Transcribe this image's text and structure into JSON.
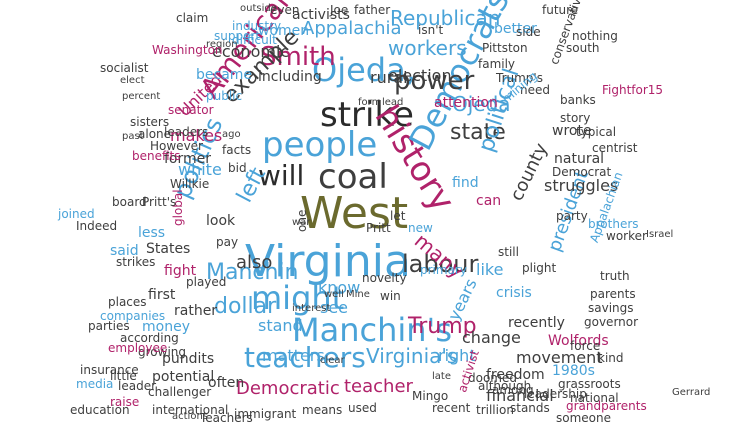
{
  "words": [
    {
      "text": "West",
      "color": "#6b6a2e"
    },
    {
      "text": "Virginia",
      "color": "#4aa3d8"
    },
    {
      "text": "coal",
      "color": "#3e3e3e"
    },
    {
      "text": "will",
      "color": "#2b2b2b"
    },
    {
      "text": "strike",
      "color": "#2b2b2b"
    },
    {
      "text": "people",
      "color": "#4aa3d8"
    },
    {
      "text": "might",
      "color": "#4aa3d8"
    },
    {
      "text": "history",
      "color": "#b0226a"
    },
    {
      "text": "Ojeda,",
      "color": "#4aa3d8"
    },
    {
      "text": "Smith",
      "color": "#b0226a"
    },
    {
      "text": "Manchin's",
      "color": "#4aa3d8"
    },
    {
      "text": "teachers",
      "color": "#4aa3d8"
    },
    {
      "text": "Democrats",
      "color": "#4aa3d8"
    },
    {
      "text": "American",
      "color": "#b0226a"
    },
    {
      "text": "politics",
      "color": "#4aa3d8"
    },
    {
      "text": "labour",
      "color": "#3e3e3e"
    },
    {
      "text": "power",
      "color": "#3e3e3e"
    },
    {
      "text": "example",
      "color": "#3e3e3e"
    },
    {
      "text": "left",
      "color": "#4aa3d8"
    },
    {
      "text": "Manchin",
      "color": "#4aa3d8"
    },
    {
      "text": "dollar",
      "color": "#4aa3d8"
    },
    {
      "text": "Trump",
      "color": "#b0226a"
    },
    {
      "text": "state",
      "color": "#3e3e3e"
    },
    {
      "text": "Ojeda",
      "color": "#4aa3d8"
    },
    {
      "text": "workers",
      "color": "#4aa3d8"
    },
    {
      "text": "political",
      "color": "#4aa3d8"
    },
    {
      "text": "many",
      "color": "#b0226a"
    },
    {
      "text": "Appalachia",
      "color": "#4aa3d8"
    },
    {
      "text": "Republican",
      "color": "#4aa3d8"
    },
    {
      "text": "election",
      "color": "#3e3e3e"
    },
    {
      "text": "economic",
      "color": "#3e3e3e"
    },
    {
      "text": "Virginia's",
      "color": "#4aa3d8"
    },
    {
      "text": "Democratic",
      "color": "#b0226a"
    },
    {
      "text": "teacher",
      "color": "#b0226a"
    },
    {
      "text": "county",
      "color": "#3e3e3e"
    },
    {
      "text": "president",
      "color": "#4aa3d8"
    },
    {
      "text": "rural",
      "color": "#3e3e3e"
    },
    {
      "text": "also",
      "color": "#3e3e3e"
    },
    {
      "text": "know",
      "color": "#4aa3d8"
    },
    {
      "text": "see",
      "color": "#4aa3d8"
    },
    {
      "text": "stand",
      "color": "#4aa3d8"
    },
    {
      "text": "matters",
      "color": "#4aa3d8"
    },
    {
      "text": "right",
      "color": "#4aa3d8"
    },
    {
      "text": "change",
      "color": "#3e3e3e"
    },
    {
      "text": "years",
      "color": "#4aa3d8"
    },
    {
      "text": "like",
      "color": "#4aa3d8"
    },
    {
      "text": "makes",
      "color": "#b0226a"
    },
    {
      "text": "United",
      "color": "#b0226a"
    },
    {
      "text": "white",
      "color": "#4aa3d8"
    },
    {
      "text": "movement",
      "color": "#3e3e3e"
    },
    {
      "text": "financial",
      "color": "#3e3e3e"
    },
    {
      "text": "freedom",
      "color": "#3e3e3e"
    },
    {
      "text": "struggles",
      "color": "#3e3e3e"
    },
    {
      "text": "find",
      "color": "#4aa3d8"
    },
    {
      "text": "natural",
      "color": "#3e3e3e"
    },
    {
      "text": "Democrat",
      "color": "#3e3e3e"
    },
    {
      "text": "can",
      "color": "#b0226a"
    },
    {
      "text": "wrote",
      "color": "#3e3e3e"
    },
    {
      "text": "crisis",
      "color": "#4aa3d8"
    },
    {
      "text": "recently",
      "color": "#3e3e3e"
    },
    {
      "text": "Wolfords",
      "color": "#b0226a"
    },
    {
      "text": "pundits",
      "color": "#3e3e3e"
    },
    {
      "text": "potential",
      "color": "#3e3e3e"
    },
    {
      "text": "often",
      "color": "#3e3e3e"
    },
    {
      "text": "money",
      "color": "#4aa3d8"
    },
    {
      "text": "rather",
      "color": "#3e3e3e"
    },
    {
      "text": "first",
      "color": "#3e3e3e"
    },
    {
      "text": "according",
      "color": "#3e3e3e"
    },
    {
      "text": "growing",
      "color": "#3e3e3e"
    },
    {
      "text": "States",
      "color": "#3e3e3e"
    },
    {
      "text": "said",
      "color": "#4aa3d8"
    },
    {
      "text": "less",
      "color": "#4aa3d8"
    },
    {
      "text": "fight",
      "color": "#b0226a"
    },
    {
      "text": "played",
      "color": "#3e3e3e"
    },
    {
      "text": "global",
      "color": "#b0226a"
    },
    {
      "text": "look",
      "color": "#3e3e3e"
    },
    {
      "text": "Willkie",
      "color": "#3e3e3e"
    },
    {
      "text": "bid",
      "color": "#3e3e3e"
    },
    {
      "text": "former",
      "color": "#3e3e3e"
    },
    {
      "text": "leaders",
      "color": "#3e3e3e"
    },
    {
      "text": "However",
      "color": "#3e3e3e"
    },
    {
      "text": "became",
      "color": "#4aa3d8"
    },
    {
      "text": "including",
      "color": "#3e3e3e"
    },
    {
      "text": "women",
      "color": "#4aa3d8"
    },
    {
      "text": "activists",
      "color": "#3e3e3e"
    },
    {
      "text": "even",
      "color": "#3e3e3e"
    },
    {
      "text": "Joe",
      "color": "#3e3e3e"
    },
    {
      "text": "outside",
      "color": "#3e3e3e"
    },
    {
      "text": "claim",
      "color": "#3e3e3e"
    },
    {
      "text": "industry",
      "color": "#4aa3d8"
    },
    {
      "text": "support",
      "color": "#4aa3d8"
    },
    {
      "text": "difficult",
      "color": "#4aa3d8"
    },
    {
      "text": "region",
      "color": "#3e3e3e"
    },
    {
      "text": "Washington",
      "color": "#b0226a"
    },
    {
      "text": "senator",
      "color": "#b0226a"
    },
    {
      "text": "public",
      "color": "#4aa3d8"
    },
    {
      "text": "Pittston",
      "color": "#3e3e3e"
    },
    {
      "text": "better",
      "color": "#4aa3d8"
    },
    {
      "text": "family",
      "color": "#3e3e3e"
    },
    {
      "text": "attention",
      "color": "#b0226a"
    },
    {
      "text": "Trump's",
      "color": "#3e3e3e"
    },
    {
      "text": "need",
      "color": "#3e3e3e"
    },
    {
      "text": "banks",
      "color": "#3e3e3e"
    },
    {
      "text": "mining",
      "color": "#4aa3d8"
    },
    {
      "text": "conservative",
      "color": "#3e3e3e"
    },
    {
      "text": "Fightfor15",
      "color": "#b0226a"
    },
    {
      "text": "story",
      "color": "#3e3e3e"
    },
    {
      "text": "typical",
      "color": "#3e3e3e"
    },
    {
      "text": "centrist",
      "color": "#3e3e3e"
    },
    {
      "text": "brothers",
      "color": "#4aa3d8"
    },
    {
      "text": "Appalachian",
      "color": "#4aa3d8"
    },
    {
      "text": "worker",
      "color": "#3e3e3e"
    },
    {
      "text": "party",
      "color": "#3e3e3e"
    },
    {
      "text": "truth",
      "color": "#3e3e3e"
    },
    {
      "text": "parents",
      "color": "#3e3e3e"
    },
    {
      "text": "savings",
      "color": "#3e3e3e"
    },
    {
      "text": "governor",
      "color": "#3e3e3e"
    },
    {
      "text": "1980s",
      "color": "#4aa3d8"
    },
    {
      "text": "grassroots",
      "color": "#3e3e3e"
    },
    {
      "text": "national",
      "color": "#3e3e3e"
    },
    {
      "text": "kind",
      "color": "#3e3e3e"
    },
    {
      "text": "force",
      "color": "#3e3e3e"
    },
    {
      "text": "grandparents",
      "color": "#b0226a"
    },
    {
      "text": "stands",
      "color": "#3e3e3e"
    },
    {
      "text": "someone",
      "color": "#3e3e3e"
    },
    {
      "text": "trillion",
      "color": "#3e3e3e"
    },
    {
      "text": "leadership",
      "color": "#3e3e3e"
    },
    {
      "text": "among",
      "color": "#3e3e3e"
    },
    {
      "text": "doomed",
      "color": "#3e3e3e"
    },
    {
      "text": "although",
      "color": "#3e3e3e"
    },
    {
      "text": "activist",
      "color": "#b0226a"
    },
    {
      "text": "Mingo",
      "color": "#3e3e3e"
    },
    {
      "text": "recent",
      "color": "#3e3e3e"
    },
    {
      "text": "used",
      "color": "#3e3e3e"
    },
    {
      "text": "means",
      "color": "#3e3e3e"
    },
    {
      "text": "immigrant",
      "color": "#3e3e3e"
    },
    {
      "text": "international",
      "color": "#3e3e3e"
    },
    {
      "text": "Teachers",
      "color": "#3e3e3e"
    },
    {
      "text": "actions",
      "color": "#3e3e3e"
    },
    {
      "text": "challenger",
      "color": "#3e3e3e"
    },
    {
      "text": "raise",
      "color": "#b0226a"
    },
    {
      "text": "leader",
      "color": "#3e3e3e"
    },
    {
      "text": "media",
      "color": "#4aa3d8"
    },
    {
      "text": "employee",
      "color": "#b0226a"
    },
    {
      "text": "places",
      "color": "#3e3e3e"
    },
    {
      "text": "companies",
      "color": "#4aa3d8"
    },
    {
      "text": "parties",
      "color": "#3e3e3e"
    },
    {
      "text": "board",
      "color": "#3e3e3e"
    },
    {
      "text": "Pritt's",
      "color": "#3e3e3e"
    },
    {
      "text": "joined",
      "color": "#4aa3d8"
    },
    {
      "text": "Indeed",
      "color": "#3e3e3e"
    },
    {
      "text": "strikes",
      "color": "#3e3e3e"
    },
    {
      "text": "socialist",
      "color": "#3e3e3e"
    },
    {
      "text": "elect",
      "color": "#3e3e3e"
    },
    {
      "text": "sisters",
      "color": "#3e3e3e"
    },
    {
      "text": "alone",
      "color": "#3e3e3e"
    },
    {
      "text": "percent",
      "color": "#3e3e3e"
    },
    {
      "text": "benefits",
      "color": "#b0226a"
    },
    {
      "text": "past",
      "color": "#3e3e3e"
    },
    {
      "text": "Pritt",
      "color": "#3e3e3e"
    },
    {
      "text": "pay",
      "color": "#3e3e3e"
    },
    {
      "text": "facts",
      "color": "#3e3e3e"
    },
    {
      "text": "let",
      "color": "#3e3e3e"
    },
    {
      "text": "new",
      "color": "#4aa3d8"
    },
    {
      "text": "one",
      "color": "#3e3e3e"
    },
    {
      "text": "war",
      "color": "#3e3e3e"
    },
    {
      "text": "win",
      "color": "#3e3e3e"
    },
    {
      "text": "well",
      "color": "#3e3e3e"
    },
    {
      "text": "Mine",
      "color": "#3e3e3e"
    },
    {
      "text": "novelty",
      "color": "#3e3e3e"
    },
    {
      "text": "primary",
      "color": "#4aa3d8"
    },
    {
      "text": "still",
      "color": "#3e3e3e"
    },
    {
      "text": "plight",
      "color": "#3e3e3e"
    },
    {
      "text": "interest",
      "color": "#3e3e3e"
    },
    {
      "text": "clear",
      "color": "#3e3e3e"
    },
    {
      "text": "late",
      "color": "#3e3e3e"
    },
    {
      "text": "isn't",
      "color": "#3e3e3e"
    },
    {
      "text": "form",
      "color": "#3e3e3e"
    },
    {
      "text": "lead",
      "color": "#3e3e3e"
    },
    {
      "text": "south",
      "color": "#3e3e3e"
    },
    {
      "text": "future",
      "color": "#3e3e3e"
    },
    {
      "text": "father",
      "color": "#3e3e3e"
    },
    {
      "text": "side",
      "color": "#3e3e3e"
    },
    {
      "text": "nothing",
      "color": "#3e3e3e"
    },
    {
      "text": "ago",
      "color": "#3e3e3e"
    },
    {
      "text": "little",
      "color": "#3e3e3e"
    },
    {
      "text": "insurance",
      "color": "#3e3e3e"
    },
    {
      "text": "education",
      "color": "#3e3e3e"
    },
    {
      "text": "Israel",
      "color": "#3e3e3e"
    },
    {
      "text": "Gerrard",
      "color": "#3e3e3e"
    }
  ]
}
